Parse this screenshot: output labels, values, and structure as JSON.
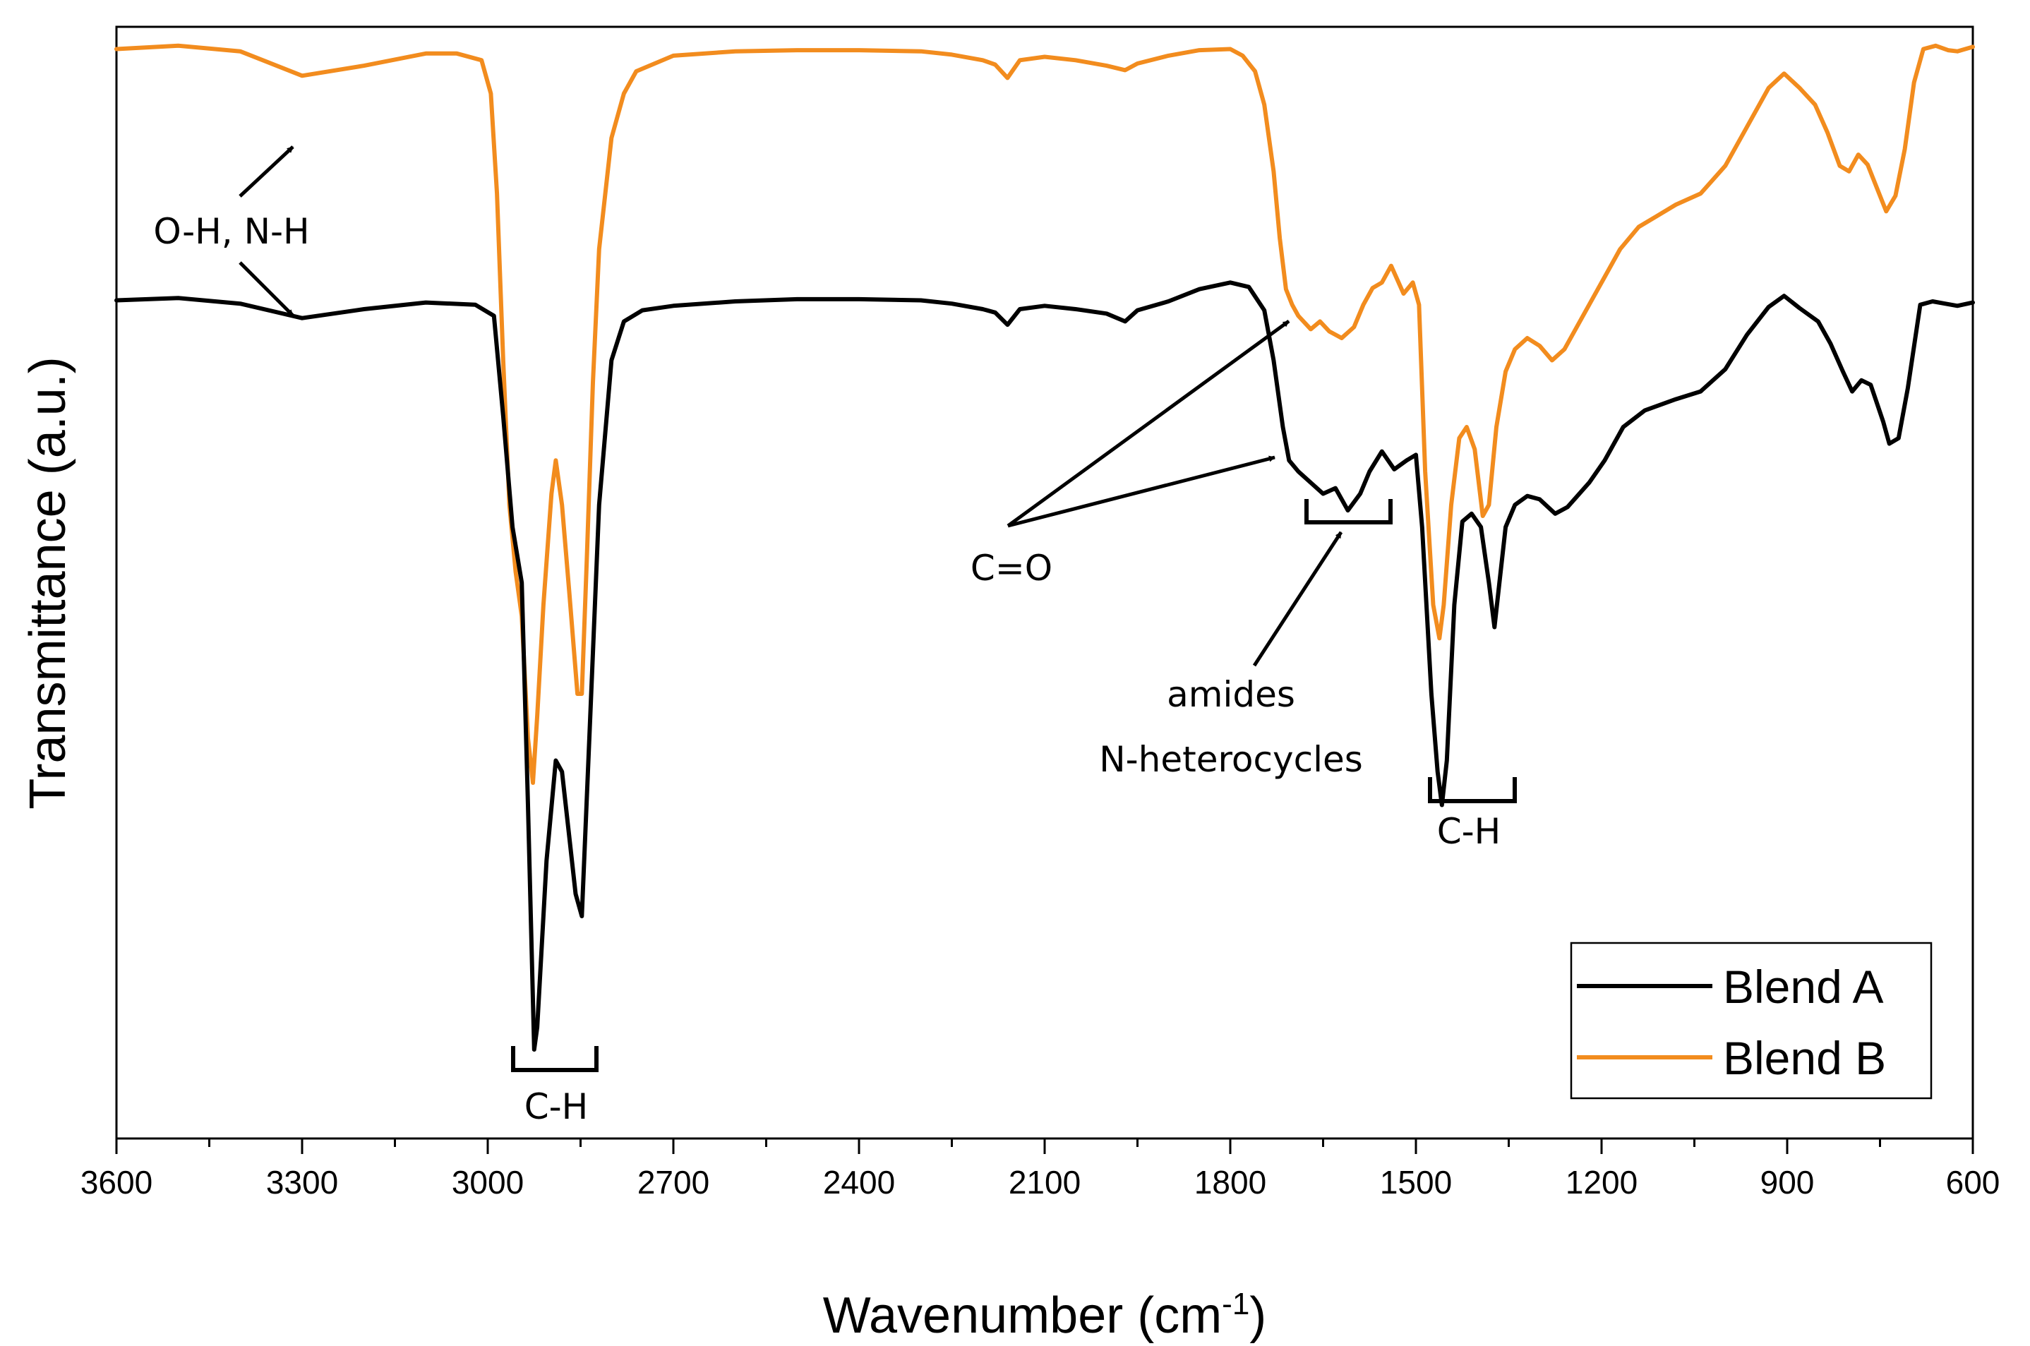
{
  "chart_data": {
    "type": "line",
    "title": "",
    "xlabel": "Wavenumber (cm",
    "xlabel_sup": "-1",
    "xlabel_close": ")",
    "ylabel": "Transmittance (a.u.)",
    "xlim": [
      3600,
      600
    ],
    "ylim": [
      0,
      100
    ],
    "x_ticks": [
      3600,
      3300,
      3000,
      2700,
      2400,
      2100,
      1800,
      1500,
      1200,
      900,
      600
    ],
    "grid": false,
    "legend": "bottom-right",
    "series": [
      {
        "name": "Blend A",
        "color": "#000000",
        "points": [
          [
            3600,
            75.4
          ],
          [
            3500,
            75.6
          ],
          [
            3400,
            75.1
          ],
          [
            3300,
            73.8
          ],
          [
            3200,
            74.6
          ],
          [
            3100,
            75.2
          ],
          [
            3020,
            75.0
          ],
          [
            2990,
            74.0
          ],
          [
            2975,
            65
          ],
          [
            2960,
            55
          ],
          [
            2945,
            50
          ],
          [
            2935,
            30
          ],
          [
            2925,
            8
          ],
          [
            2920,
            10
          ],
          [
            2905,
            25
          ],
          [
            2890,
            34
          ],
          [
            2880,
            33
          ],
          [
            2870,
            28
          ],
          [
            2858,
            22
          ],
          [
            2848,
            20
          ],
          [
            2835,
            37
          ],
          [
            2820,
            57
          ],
          [
            2800,
            70
          ],
          [
            2780,
            73.5
          ],
          [
            2750,
            74.5
          ],
          [
            2700,
            74.9
          ],
          [
            2600,
            75.3
          ],
          [
            2500,
            75.5
          ],
          [
            2400,
            75.5
          ],
          [
            2300,
            75.4
          ],
          [
            2250,
            75.1
          ],
          [
            2200,
            74.6
          ],
          [
            2180,
            74.3
          ],
          [
            2160,
            73.2
          ],
          [
            2140,
            74.6
          ],
          [
            2100,
            74.9
          ],
          [
            2050,
            74.6
          ],
          [
            2000,
            74.2
          ],
          [
            1970,
            73.5
          ],
          [
            1950,
            74.5
          ],
          [
            1900,
            75.3
          ],
          [
            1850,
            76.4
          ],
          [
            1800,
            77.0
          ],
          [
            1770,
            76.6
          ],
          [
            1745,
            74.5
          ],
          [
            1730,
            70
          ],
          [
            1715,
            64
          ],
          [
            1705,
            61
          ],
          [
            1690,
            60
          ],
          [
            1670,
            59.0
          ],
          [
            1650,
            58
          ],
          [
            1630,
            58.5
          ],
          [
            1610,
            56.5
          ],
          [
            1590,
            58
          ],
          [
            1575,
            60
          ],
          [
            1555,
            61.8
          ],
          [
            1535,
            60.2
          ],
          [
            1515,
            61.0
          ],
          [
            1500,
            61.5
          ],
          [
            1490,
            55
          ],
          [
            1475,
            40
          ],
          [
            1465,
            33
          ],
          [
            1458,
            30
          ],
          [
            1450,
            34
          ],
          [
            1438,
            48
          ],
          [
            1425,
            55.5
          ],
          [
            1410,
            56.2
          ],
          [
            1395,
            55
          ],
          [
            1382,
            50
          ],
          [
            1373,
            46
          ],
          [
            1365,
            50
          ],
          [
            1355,
            55
          ],
          [
            1340,
            57
          ],
          [
            1320,
            57.8
          ],
          [
            1300,
            57.5
          ],
          [
            1275,
            56.2
          ],
          [
            1255,
            56.8
          ],
          [
            1220,
            59
          ],
          [
            1195,
            61
          ],
          [
            1165,
            64
          ],
          [
            1130,
            65.5
          ],
          [
            1080,
            66.5
          ],
          [
            1040,
            67.2
          ],
          [
            1000,
            69.2
          ],
          [
            965,
            72.3
          ],
          [
            930,
            74.8
          ],
          [
            905,
            75.8
          ],
          [
            880,
            74.7
          ],
          [
            850,
            73.5
          ],
          [
            830,
            71.5
          ],
          [
            810,
            69.0
          ],
          [
            795,
            67.2
          ],
          [
            780,
            68.2
          ],
          [
            765,
            67.8
          ],
          [
            745,
            64.5
          ],
          [
            735,
            62.5
          ],
          [
            720,
            63.0
          ],
          [
            705,
            67.5
          ],
          [
            685,
            75.0
          ],
          [
            665,
            75.3
          ],
          [
            645,
            75.1
          ],
          [
            625,
            74.9
          ],
          [
            600,
            75.2
          ]
        ]
      },
      {
        "name": "Blend B",
        "color": "#F28C1E",
        "points": [
          [
            3600,
            98.0
          ],
          [
            3500,
            98.3
          ],
          [
            3400,
            97.8
          ],
          [
            3300,
            95.6
          ],
          [
            3200,
            96.5
          ],
          [
            3100,
            97.6
          ],
          [
            3050,
            97.6
          ],
          [
            3010,
            97.0
          ],
          [
            2995,
            94
          ],
          [
            2985,
            85
          ],
          [
            2975,
            70
          ],
          [
            2965,
            57
          ],
          [
            2955,
            51
          ],
          [
            2945,
            47
          ],
          [
            2935,
            36
          ],
          [
            2927,
            32
          ],
          [
            2920,
            38
          ],
          [
            2910,
            48
          ],
          [
            2897,
            58
          ],
          [
            2890,
            61
          ],
          [
            2880,
            57
          ],
          [
            2868,
            49
          ],
          [
            2855,
            40
          ],
          [
            2848,
            40
          ],
          [
            2840,
            52
          ],
          [
            2830,
            68
          ],
          [
            2820,
            80
          ],
          [
            2800,
            90
          ],
          [
            2780,
            94
          ],
          [
            2760,
            96
          ],
          [
            2700,
            97.4
          ],
          [
            2600,
            97.8
          ],
          [
            2500,
            97.9
          ],
          [
            2400,
            97.9
          ],
          [
            2300,
            97.8
          ],
          [
            2250,
            97.5
          ],
          [
            2200,
            97.0
          ],
          [
            2180,
            96.6
          ],
          [
            2160,
            95.4
          ],
          [
            2140,
            97.0
          ],
          [
            2100,
            97.3
          ],
          [
            2050,
            97.0
          ],
          [
            2000,
            96.5
          ],
          [
            1970,
            96.1
          ],
          [
            1950,
            96.7
          ],
          [
            1900,
            97.4
          ],
          [
            1850,
            97.9
          ],
          [
            1800,
            98.0
          ],
          [
            1780,
            97.4
          ],
          [
            1760,
            96.0
          ],
          [
            1745,
            93
          ],
          [
            1730,
            87
          ],
          [
            1720,
            81
          ],
          [
            1710,
            76.4
          ],
          [
            1700,
            75
          ],
          [
            1690,
            74
          ],
          [
            1670,
            72.8
          ],
          [
            1655,
            73.5
          ],
          [
            1640,
            72.6
          ],
          [
            1620,
            72
          ],
          [
            1600,
            73
          ],
          [
            1585,
            75
          ],
          [
            1570,
            76.5
          ],
          [
            1555,
            77
          ],
          [
            1540,
            78.5
          ],
          [
            1520,
            76
          ],
          [
            1505,
            77
          ],
          [
            1495,
            75
          ],
          [
            1485,
            60
          ],
          [
            1472,
            48
          ],
          [
            1462,
            45
          ],
          [
            1455,
            48
          ],
          [
            1443,
            57
          ],
          [
            1430,
            63
          ],
          [
            1418,
            64
          ],
          [
            1405,
            62
          ],
          [
            1392,
            56
          ],
          [
            1382,
            57
          ],
          [
            1370,
            64
          ],
          [
            1355,
            69
          ],
          [
            1340,
            71
          ],
          [
            1320,
            72
          ],
          [
            1300,
            71.3
          ],
          [
            1280,
            70
          ],
          [
            1260,
            71
          ],
          [
            1240,
            73
          ],
          [
            1215,
            75.5
          ],
          [
            1195,
            77.5
          ],
          [
            1170,
            80
          ],
          [
            1140,
            82
          ],
          [
            1110,
            83
          ],
          [
            1080,
            84
          ],
          [
            1040,
            85
          ],
          [
            1000,
            87.5
          ],
          [
            965,
            91
          ],
          [
            930,
            94.5
          ],
          [
            905,
            95.8
          ],
          [
            880,
            94.5
          ],
          [
            855,
            93
          ],
          [
            835,
            90.5
          ],
          [
            815,
            87.5
          ],
          [
            800,
            87.0
          ],
          [
            785,
            88.5
          ],
          [
            770,
            87.6
          ],
          [
            755,
            85.5
          ],
          [
            740,
            83.4
          ],
          [
            725,
            84.8
          ],
          [
            710,
            89
          ],
          [
            695,
            95
          ],
          [
            680,
            98
          ],
          [
            660,
            98.3
          ],
          [
            640,
            97.9
          ],
          [
            625,
            97.8
          ],
          [
            600,
            98.2
          ]
        ]
      }
    ],
    "annotations": [
      "O-H, N-H",
      "C-H",
      "C=O",
      "amides",
      "N-heterocycles",
      "C-H"
    ]
  }
}
